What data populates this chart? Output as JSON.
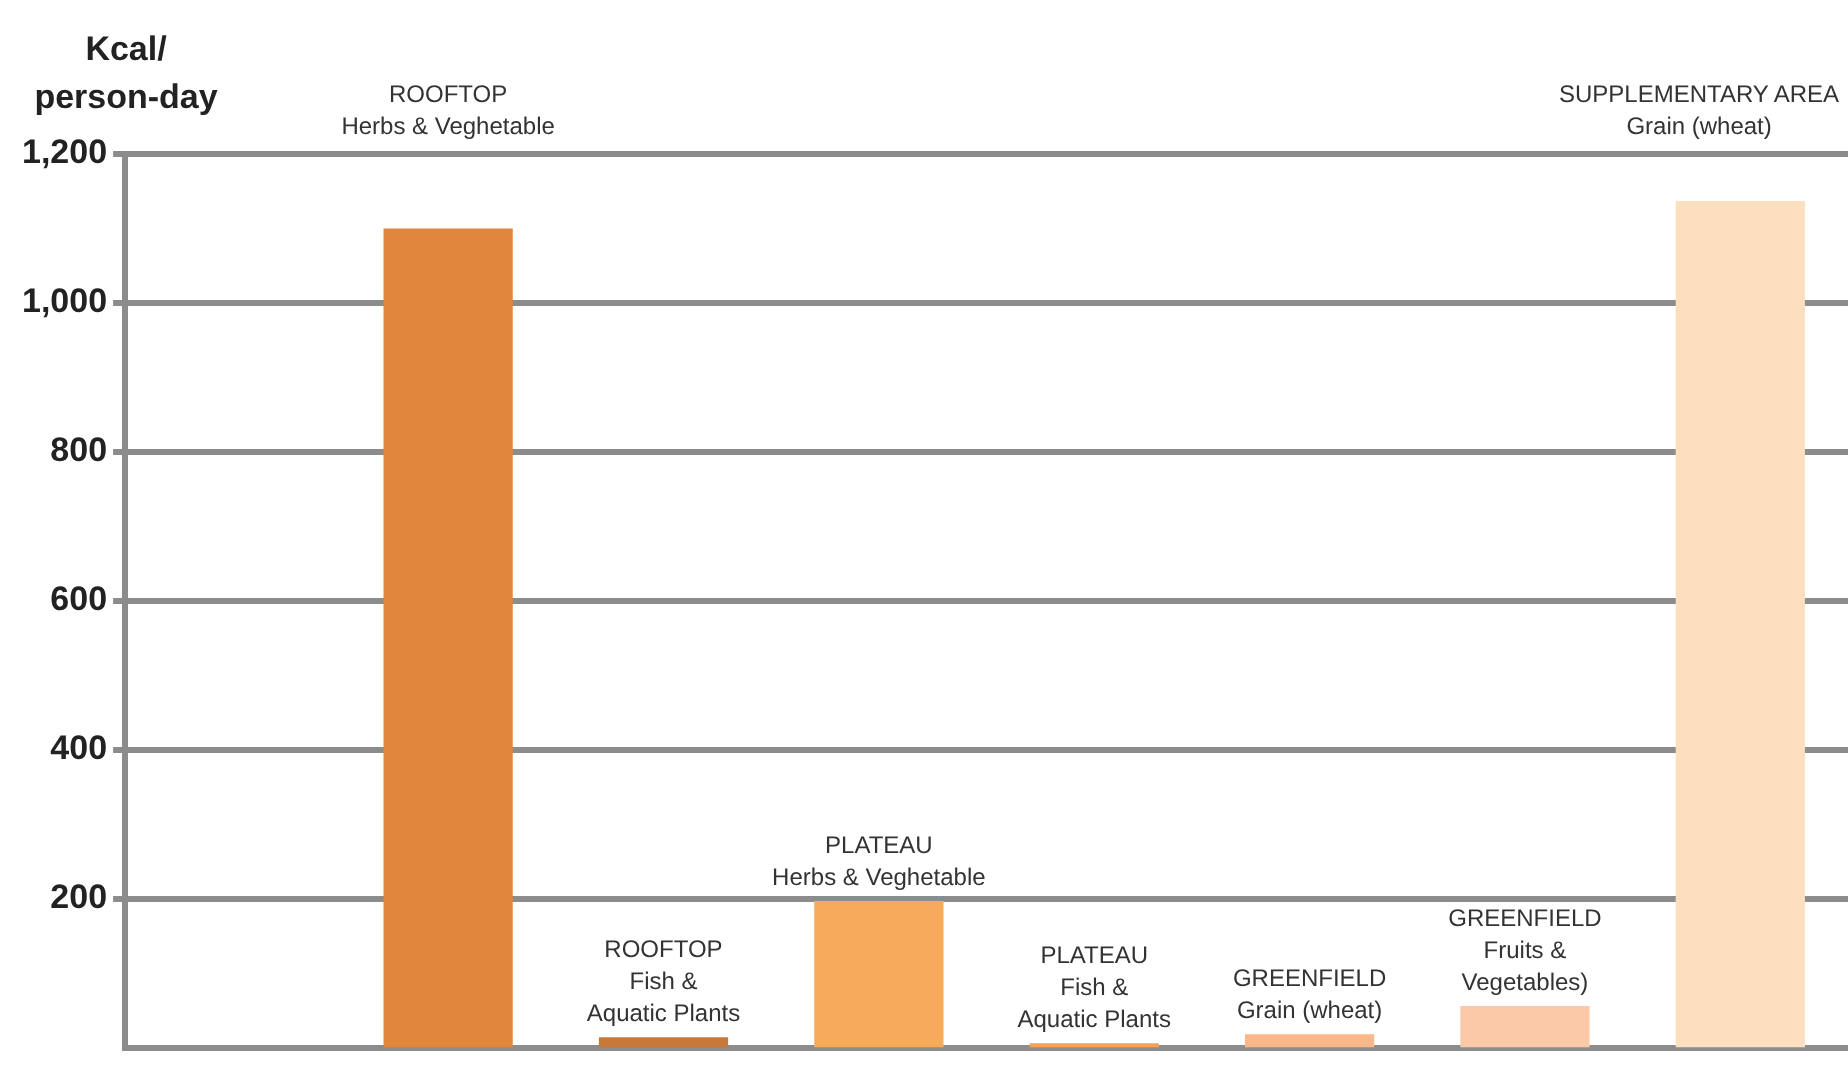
{
  "chart_data": {
    "type": "bar",
    "ylabel": "Kcal/\nperson-day",
    "categories": [
      null,
      "ROOFTOP\nHerbs & Veghetable",
      "ROOFTOP\nFish &\nAquatic Plants",
      "PLATEAU\nHerbs & Veghetable",
      "PLATEAU\nFish &\nAquatic Plants",
      "GREENFIELD\nGrain (wheat)",
      "GREENFIELD\nFruits &\nVegetables)",
      "SUPPLEMENTARY AREA\nGrain (wheat)"
    ],
    "values": [
      null,
      1100,
      14,
      197,
      6,
      18,
      56,
      1137
    ],
    "colors": [
      "#e0873d",
      "#e0873d",
      "#c8793a",
      "#f7aa5a",
      "#f5a05a",
      "#f8b88a",
      "#fbc9a8",
      "#fcdfbf"
    ],
    "ylim": [
      0,
      1200
    ],
    "yticks": [
      200,
      400,
      600,
      800,
      {
        "value": 1000,
        "label": "1,000"
      },
      {
        "value": 1200,
        "label": "1,200"
      }
    ],
    "grid": "y",
    "tick_labels": "y"
  }
}
